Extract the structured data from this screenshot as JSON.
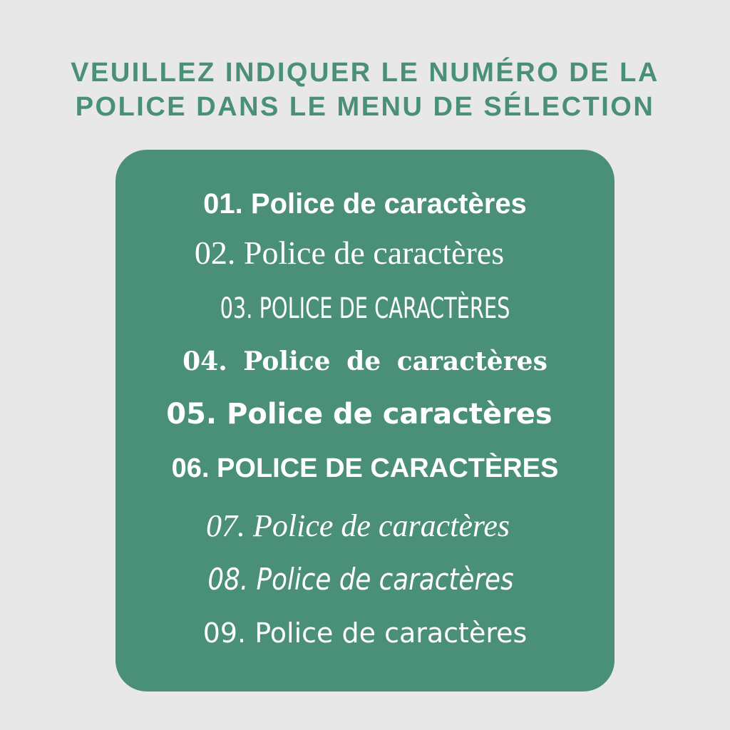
{
  "header": {
    "line1": "VEUILLEZ INDIQUER LE NUMÉRO DE LA",
    "line2": "POLICE DANS LE MENU DE SÉLECTION"
  },
  "colors": {
    "background": "#e8e8e8",
    "accent": "#4a8f78",
    "text_on_panel": "#ffffff"
  },
  "fonts": [
    "01. Police de caractères",
    "02. Police de caractères",
    "03. POLICE DE CARACTÈRES",
    "04. Police de caractères",
    "05. Police de caractères",
    "06. POLICE DE CARACTÈRES",
    "07. Police de caractères",
    "08. Police de caractères",
    "09. Police de caractères"
  ]
}
